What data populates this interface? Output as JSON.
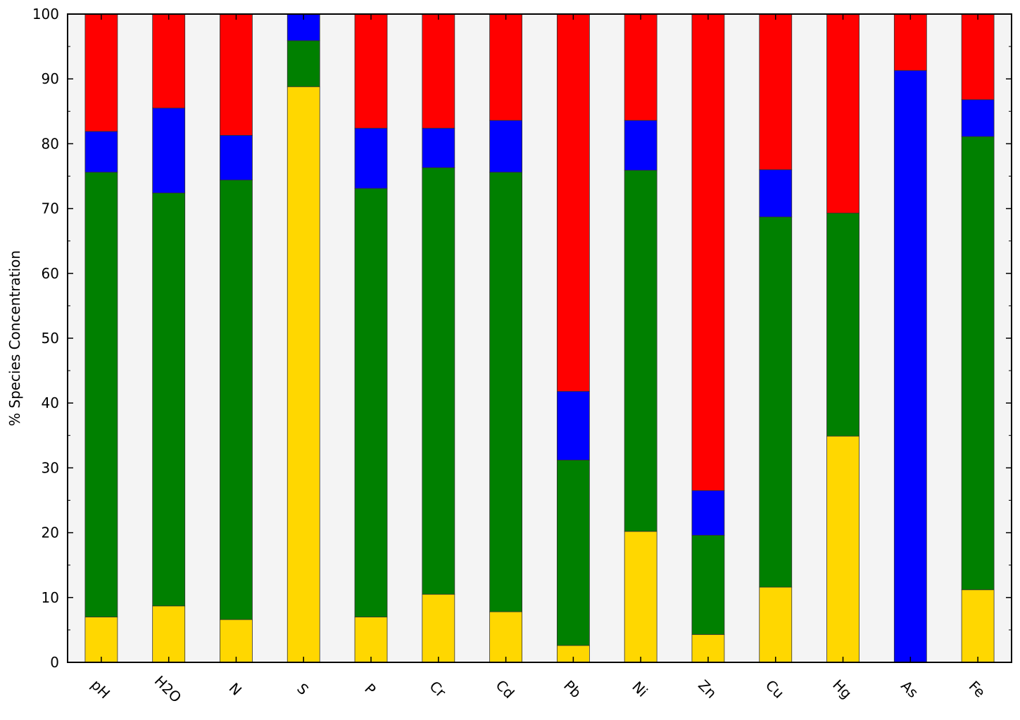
{
  "chart_data": {
    "type": "bar",
    "stacked": true,
    "title": "",
    "xlabel": "",
    "ylabel": "% Species Concentration",
    "ylim": [
      0,
      100
    ],
    "yticks": [
      0,
      10,
      20,
      30,
      40,
      50,
      60,
      70,
      80,
      90,
      100
    ],
    "grid": false,
    "legend": "none",
    "categories": [
      "pH",
      "H2O",
      "N",
      "S",
      "P",
      "Cr",
      "Cd",
      "Pb",
      "Ni",
      "Zn",
      "Cu",
      "Hg",
      "As",
      "Fe"
    ],
    "series": [
      {
        "color": "#ffd700",
        "values": [
          7.0,
          8.7,
          6.6,
          88.8,
          7.0,
          10.5,
          7.8,
          2.6,
          20.2,
          4.3,
          11.6,
          34.9,
          0.0,
          11.2
        ]
      },
      {
        "color": "#008000",
        "values": [
          68.6,
          63.7,
          67.8,
          7.1,
          66.1,
          65.8,
          67.8,
          28.6,
          55.7,
          15.3,
          57.1,
          34.4,
          0.0,
          69.9
        ]
      },
      {
        "color": "#0000ff",
        "values": [
          6.3,
          13.1,
          6.9,
          4.1,
          9.3,
          6.1,
          8.0,
          10.6,
          7.7,
          6.9,
          7.3,
          0.0,
          91.3,
          5.7
        ]
      },
      {
        "color": "#ff0000",
        "values": [
          18.1,
          14.5,
          18.7,
          0.0,
          17.6,
          17.6,
          16.4,
          58.2,
          16.4,
          73.5,
          24.0,
          30.7,
          8.7,
          13.2
        ]
      }
    ]
  },
  "colors": {
    "plot_background": "#f4f4f4",
    "axis": "#000000"
  }
}
